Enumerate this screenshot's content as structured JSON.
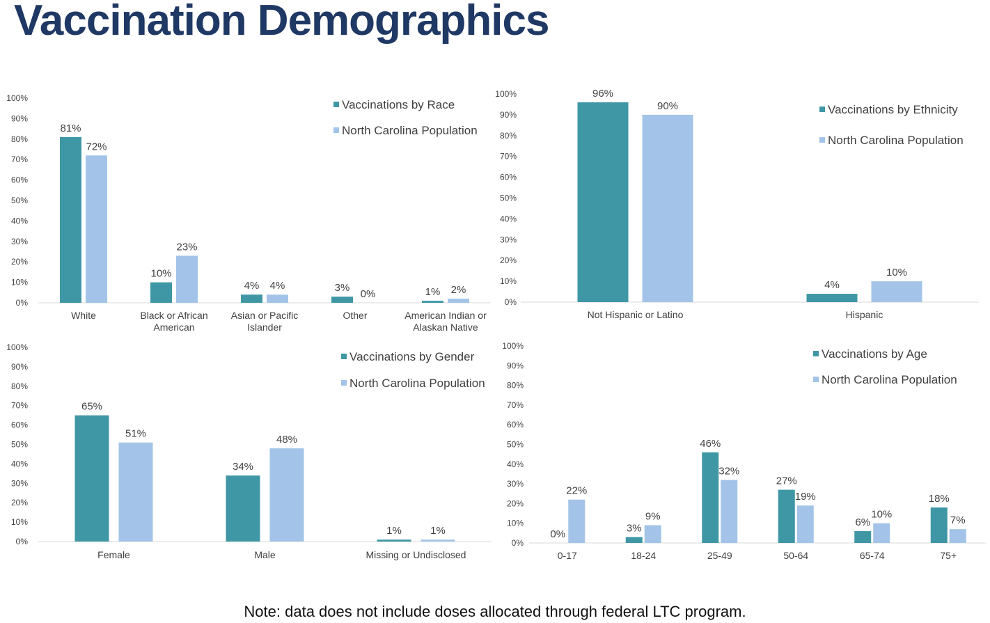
{
  "page": {
    "title": "Vaccination Demographics",
    "note": "Note: data does not include doses allocated through federal LTC program."
  },
  "colors": {
    "title": "#1f3864",
    "vaccinations": "#3f97a6",
    "population": "#a3c4e8",
    "axis": "#d9d9d9",
    "text": "#404040"
  },
  "chart_data": [
    {
      "type": "bar",
      "title": "",
      "ylim": [
        0,
        100
      ],
      "yticks": [
        "0%",
        "10%",
        "20%",
        "30%",
        "40%",
        "50%",
        "60%",
        "70%",
        "80%",
        "90%",
        "100%"
      ],
      "legend_position": "top-right",
      "grid": false,
      "categories": [
        [
          "White"
        ],
        [
          "Black or African",
          "American"
        ],
        [
          "Asian or Pacific",
          "Islander"
        ],
        [
          "Other"
        ],
        [
          "American Indian or",
          "Alaskan Native"
        ]
      ],
      "series": [
        {
          "name": "Vaccinations by Race",
          "values": [
            81,
            10,
            4,
            3,
            1
          ],
          "labels": [
            "81%",
            "10%",
            "4%",
            "3%",
            "1%"
          ]
        },
        {
          "name": "North Carolina Population",
          "values": [
            72,
            23,
            4,
            0,
            2
          ],
          "labels": [
            "72%",
            "23%",
            "4%",
            "0%",
            "2%"
          ]
        }
      ]
    },
    {
      "type": "bar",
      "title": "",
      "ylim": [
        0,
        100
      ],
      "yticks": [
        "0%",
        "10%",
        "20%",
        "30%",
        "40%",
        "50%",
        "60%",
        "70%",
        "80%",
        "90%",
        "100%"
      ],
      "legend_position": "top-right",
      "grid": false,
      "categories": [
        [
          "Not Hispanic or Latino"
        ],
        [
          "Hispanic"
        ]
      ],
      "series": [
        {
          "name": "Vaccinations by Ethnicity",
          "values": [
            96,
            4
          ],
          "labels": [
            "96%",
            "4%"
          ]
        },
        {
          "name": "North Carolina Population",
          "values": [
            90,
            10
          ],
          "labels": [
            "90%",
            "10%"
          ]
        }
      ]
    },
    {
      "type": "bar",
      "title": "",
      "ylim": [
        0,
        100
      ],
      "yticks": [
        "0%",
        "10%",
        "20%",
        "30%",
        "40%",
        "50%",
        "60%",
        "70%",
        "80%",
        "90%",
        "100%"
      ],
      "legend_position": "top-right",
      "grid": false,
      "categories": [
        [
          "Female"
        ],
        [
          "Male"
        ],
        [
          "Missing or Undisclosed"
        ]
      ],
      "series": [
        {
          "name": "Vaccinations by Gender",
          "values": [
            65,
            34,
            1
          ],
          "labels": [
            "65%",
            "34%",
            "1%"
          ]
        },
        {
          "name": "North Carolina Population",
          "values": [
            51,
            48,
            1
          ],
          "labels": [
            "51%",
            "48%",
            "1%"
          ]
        }
      ]
    },
    {
      "type": "bar",
      "title": "",
      "ylim": [
        0,
        100
      ],
      "yticks": [
        "0%",
        "10%",
        "20%",
        "30%",
        "40%",
        "50%",
        "60%",
        "70%",
        "80%",
        "90%",
        "100%"
      ],
      "legend_position": "top-right",
      "grid": false,
      "categories": [
        [
          "0-17"
        ],
        [
          "18-24"
        ],
        [
          "25-49"
        ],
        [
          "50-64"
        ],
        [
          "65-74"
        ],
        [
          "75+"
        ]
      ],
      "series": [
        {
          "name": "Vaccinations by Age",
          "values": [
            0,
            3,
            46,
            27,
            6,
            18
          ],
          "labels": [
            "0%",
            "3%",
            "46%",
            "27%",
            "6%",
            "18%"
          ]
        },
        {
          "name": "North Carolina Population",
          "values": [
            22,
            9,
            32,
            19,
            10,
            7
          ],
          "labels": [
            "22%",
            "9%",
            "32%",
            "19%",
            "10%",
            "7%"
          ]
        }
      ]
    }
  ]
}
